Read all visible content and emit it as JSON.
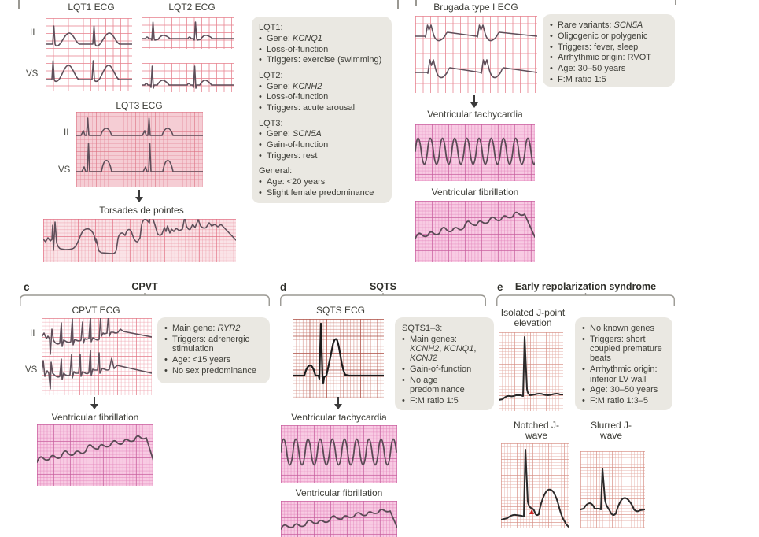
{
  "figure": {
    "colors": {
      "page_bg": "#ffffff",
      "info_box_bg": "#eae8e2",
      "text": "#3e3e38",
      "trace": "#5f4f5a",
      "sqts_trace": "#1b1b1b",
      "pink_grid_line": "#e98a96",
      "magenta_strip_bg": "#f8cbe3",
      "lqt3_strip_bg": "#f5cdd4",
      "red_marker": "#cc2222",
      "bracket": "#9a9892"
    },
    "panels": {
      "a": {
        "lqt1_title": "LQT1 ECG",
        "lqt2_title": "LQT2 ECG",
        "lqt3_title": "LQT3 ECG",
        "lead_ii": "II",
        "lead_v5": "VS",
        "torsades_label": "Torsades de pointes",
        "info": [
          {
            "h": true,
            "s": [
              {
                "t": "LQT1:"
              }
            ]
          },
          {
            "s": [
              {
                "t": "Gene: "
              },
              {
                "t": "KCNQ1",
                "i": true
              }
            ]
          },
          {
            "s": [
              {
                "t": "Loss-of-function"
              }
            ]
          },
          {
            "s": [
              {
                "t": "Triggers: exercise (swimming)"
              }
            ]
          },
          {
            "h": true,
            "s": [
              {
                "t": "LQT2:"
              }
            ]
          },
          {
            "s": [
              {
                "t": "Gene: "
              },
              {
                "t": "KCNH2",
                "i": true
              }
            ]
          },
          {
            "s": [
              {
                "t": "Loss-of-function"
              }
            ]
          },
          {
            "s": [
              {
                "t": "Triggers: acute arousal"
              }
            ]
          },
          {
            "h": true,
            "s": [
              {
                "t": "LQT3:"
              }
            ]
          },
          {
            "s": [
              {
                "t": "Gene: "
              },
              {
                "t": "SCN5A",
                "i": true
              }
            ]
          },
          {
            "s": [
              {
                "t": "Gain-of-function"
              }
            ]
          },
          {
            "s": [
              {
                "t": "Triggers: rest"
              }
            ]
          },
          {
            "h": true,
            "s": [
              {
                "t": "General:"
              }
            ]
          },
          {
            "s": [
              {
                "t": "Age: <20 years"
              }
            ]
          },
          {
            "s": [
              {
                "t": "Slight female predominance"
              }
            ]
          }
        ]
      },
      "b": {
        "title": "Brugada type I ECG",
        "vt_label": "Ventricular tachycardia",
        "vf_label": "Ventricular fibrillation",
        "info": [
          {
            "s": [
              {
                "t": "Rare variants: "
              },
              {
                "t": "SCN5A",
                "i": true
              }
            ]
          },
          {
            "s": [
              {
                "t": "Oligogenic or polygenic"
              }
            ]
          },
          {
            "s": [
              {
                "t": "Triggers: fever, sleep"
              }
            ]
          },
          {
            "s": [
              {
                "t": "Arrhythmic origin: RVOT"
              }
            ]
          },
          {
            "s": [
              {
                "t": "Age: 30–50 years"
              }
            ]
          },
          {
            "s": [
              {
                "t": "F:M ratio 1:5"
              }
            ]
          }
        ]
      },
      "c": {
        "letter": "c",
        "title": "CPVT",
        "ecg_title": "CPVT ECG",
        "lead_ii": "II",
        "lead_v5": "VS",
        "vf_label": "Ventricular fibrillation",
        "info": [
          {
            "s": [
              {
                "t": "Main gene: "
              },
              {
                "t": "RYR2",
                "i": true
              }
            ]
          },
          {
            "s": [
              {
                "t": "Triggers: adrenergic stimulation"
              }
            ]
          },
          {
            "s": [
              {
                "t": "Age: <15 years"
              }
            ]
          },
          {
            "s": [
              {
                "t": "No sex predominance"
              }
            ]
          }
        ]
      },
      "d": {
        "letter": "d",
        "title": "SQTS",
        "ecg_title": "SQTS ECG",
        "vt_label": "Ventricular tachycardia",
        "vf_label": "Ventricular fibrillation",
        "info": [
          {
            "h": true,
            "s": [
              {
                "t": "SQTS1–3:"
              }
            ]
          },
          {
            "s": [
              {
                "t": "Main genes: "
              },
              {
                "t": "KCNH2",
                "i": true
              },
              {
                "t": ", "
              },
              {
                "t": "KCNQ1",
                "i": true
              },
              {
                "t": ", "
              },
              {
                "t": "KCNJ2",
                "i": true
              }
            ]
          },
          {
            "s": [
              {
                "t": "Gain-of-function"
              }
            ]
          },
          {
            "s": [
              {
                "t": "No age predominance"
              }
            ]
          },
          {
            "s": [
              {
                "t": "F:M ratio 1:5"
              }
            ]
          }
        ]
      },
      "e": {
        "letter": "e",
        "title": "Early repolarization syndrome",
        "isolated_label": "Isolated J-point elevation",
        "notched_label": "Notched J-wave",
        "slurred_label": "Slurred J-wave",
        "info": [
          {
            "s": [
              {
                "t": "No known genes"
              }
            ]
          },
          {
            "s": [
              {
                "t": "Triggers: short coupled premature beats"
              }
            ]
          },
          {
            "s": [
              {
                "t": "Arrhythmic origin: inferior LV wall"
              }
            ]
          },
          {
            "s": [
              {
                "t": "Age: 30–50 years"
              }
            ]
          },
          {
            "s": [
              {
                "t": "F:M ratio 1:3–5"
              }
            ]
          }
        ]
      }
    }
  }
}
